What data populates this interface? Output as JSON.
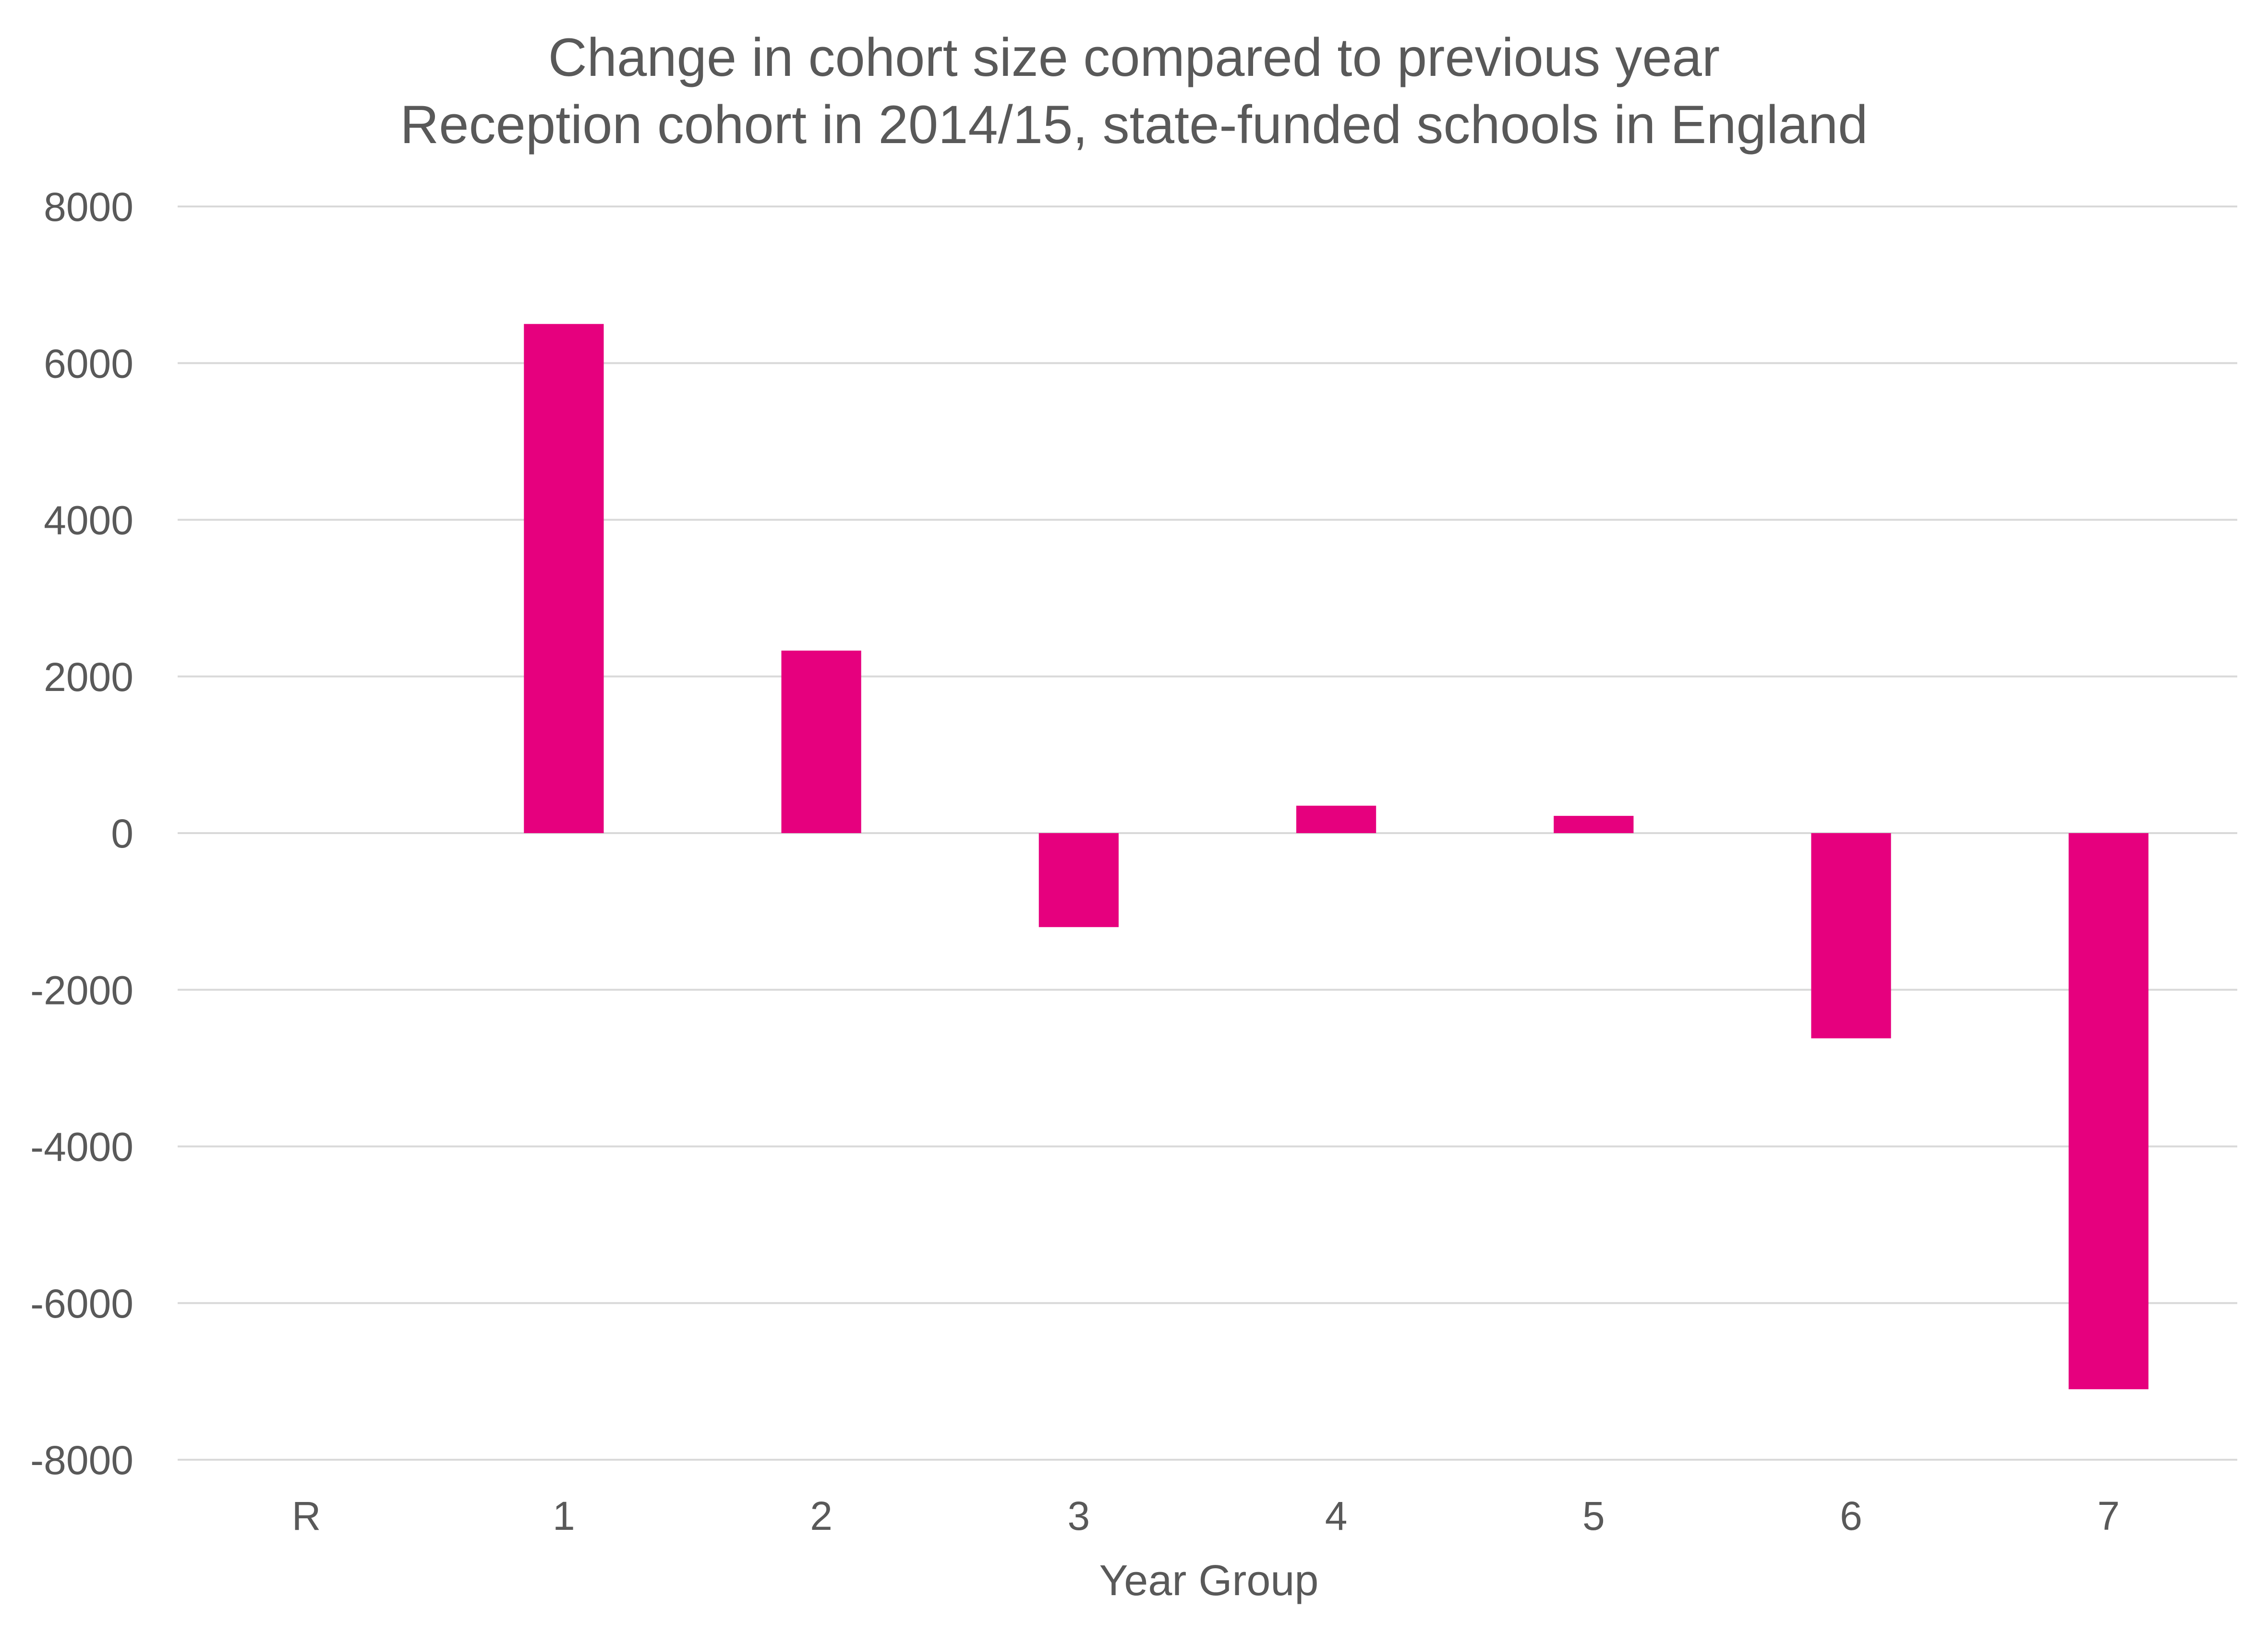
{
  "chart_data": {
    "type": "bar",
    "title_lines": [
      "Change in cohort size compared to previous year",
      "Reception cohort in 2014/15, state-funded schools in England"
    ],
    "xlabel": "Year Group",
    "ylabel": "",
    "categories": [
      "R",
      "1",
      "2",
      "3",
      "4",
      "5",
      "6",
      "7"
    ],
    "series": [
      {
        "name": "Change in cohort size",
        "values": [
          0,
          6500,
          2330,
          -1200,
          350,
          220,
          -2620,
          -7100
        ]
      }
    ],
    "ylim": [
      -8000,
      8000
    ],
    "yticks": [
      8000,
      6000,
      4000,
      2000,
      0,
      -2000,
      -4000,
      -6000,
      -8000
    ],
    "grid": true,
    "legend": "none",
    "colors": {
      "bar": "#e6007e",
      "text": "#595959",
      "grid": "#d9d9d9"
    }
  }
}
